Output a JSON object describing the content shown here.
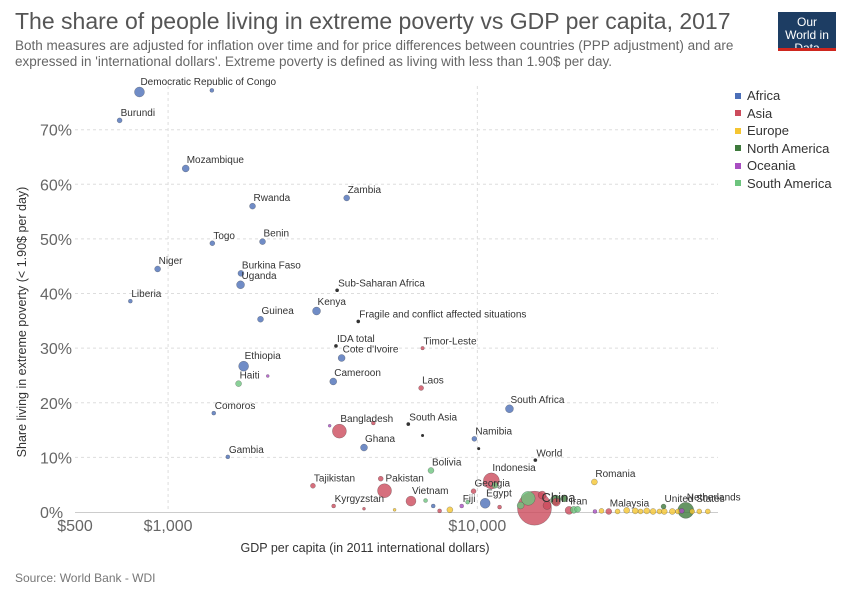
{
  "header": {
    "title": "The share of people living in extreme poverty vs GDP per capita, 2017",
    "subtitle": "Both measures are adjusted for inflation over time and for price differences between countries (PPP adjustment) and are expressed in 'international dollars'. Extreme poverty is defined as living with less than 1.90$ per day.",
    "logo_text": "Our World in Data"
  },
  "footer": {
    "source": "Source: World Bank - WDI"
  },
  "colors": {
    "Africa": "#4c6fb8",
    "Asia": "#cc4b5c",
    "Europe": "#f5c531",
    "North America": "#3e7a3c",
    "Oceania": "#a84ec1",
    "South America": "#6dc47e",
    "Aggregate": "#333333",
    "logo_bg": "#1d3d63",
    "logo_bar": "#ce261e"
  },
  "legend": [
    {
      "name": "Africa"
    },
    {
      "name": "Asia"
    },
    {
      "name": "Europe"
    },
    {
      "name": "North America"
    },
    {
      "name": "Oceania"
    },
    {
      "name": "South America"
    }
  ],
  "chart_data": {
    "type": "scatter",
    "title": "The share of people living in extreme poverty vs GDP per capita, 2017",
    "xlabel": "GDP per capita (in 2011 international dollars)",
    "ylabel": "Share living in extreme poverty (< 1.90$ per day)",
    "x_scale": "log",
    "xlim": [
      500,
      60000
    ],
    "ylim": [
      0,
      78
    ],
    "x_ticks": [
      {
        "value": 500,
        "label": "$500"
      },
      {
        "value": 1000,
        "label": "$1,000"
      },
      {
        "value": 10000,
        "label": "$10,000"
      }
    ],
    "y_ticks": [
      {
        "value": 0,
        "label": "0%"
      },
      {
        "value": 10,
        "label": "10%"
      },
      {
        "value": 20,
        "label": "20%"
      },
      {
        "value": 30,
        "label": "30%"
      },
      {
        "value": 40,
        "label": "40%"
      },
      {
        "value": 50,
        "label": "50%"
      },
      {
        "value": 60,
        "label": "60%"
      },
      {
        "value": 70,
        "label": "70%"
      }
    ],
    "grid": true,
    "legend_position": "right",
    "points": [
      {
        "label": "Democratic Republic of Congo",
        "x": 808,
        "y": 76.9,
        "continent": "Africa",
        "size": 5
      },
      {
        "label": "",
        "x": 1385,
        "y": 77.2,
        "continent": "Africa",
        "size": 2
      },
      {
        "label": "Burundi",
        "x": 697,
        "y": 71.7,
        "continent": "Africa",
        "size": 2.5
      },
      {
        "label": "Mozambique",
        "x": 1140,
        "y": 62.9,
        "continent": "Africa",
        "size": 3.5
      },
      {
        "label": "Zambia",
        "x": 3780,
        "y": 57.5,
        "continent": "Africa",
        "size": 3
      },
      {
        "label": "Rwanda",
        "x": 1875,
        "y": 56.0,
        "continent": "Africa",
        "size": 3
      },
      {
        "label": "Togo",
        "x": 1390,
        "y": 49.2,
        "continent": "Africa",
        "size": 2.5
      },
      {
        "label": "Benin",
        "x": 2020,
        "y": 49.5,
        "continent": "Africa",
        "size": 3
      },
      {
        "label": "Niger",
        "x": 925,
        "y": 44.5,
        "continent": "Africa",
        "size": 3
      },
      {
        "label": "Burkina Faso",
        "x": 1720,
        "y": 43.7,
        "continent": "Africa",
        "size": 3
      },
      {
        "label": "Uganda",
        "x": 1715,
        "y": 41.6,
        "continent": "Africa",
        "size": 4
      },
      {
        "label": "Sub-Saharan Africa",
        "x": 3520,
        "y": 40.6,
        "continent": "Aggregate",
        "size": 1.8
      },
      {
        "label": "Liberia",
        "x": 755,
        "y": 38.6,
        "continent": "Africa",
        "size": 2
      },
      {
        "label": "Kenya",
        "x": 3020,
        "y": 36.8,
        "continent": "Africa",
        "size": 4
      },
      {
        "label": "Guinea",
        "x": 1990,
        "y": 35.3,
        "continent": "Africa",
        "size": 3
      },
      {
        "label": "Fragile and conflict affected situations",
        "x": 4120,
        "y": 34.9,
        "continent": "Aggregate",
        "size": 1.8
      },
      {
        "label": "IDA total",
        "x": 3490,
        "y": 30.4,
        "continent": "Aggregate",
        "size": 1.8
      },
      {
        "label": "Timor-Leste",
        "x": 6650,
        "y": 30.0,
        "continent": "Asia",
        "size": 1.8
      },
      {
        "label": "Cote d'Ivoire",
        "x": 3640,
        "y": 28.2,
        "continent": "Africa",
        "size": 3.5
      },
      {
        "label": "Ethiopia",
        "x": 1755,
        "y": 26.7,
        "continent": "Africa",
        "size": 5
      },
      {
        "label": "",
        "x": 2100,
        "y": 24.9,
        "continent": "Oceania",
        "size": 1.5
      },
      {
        "label": "Haiti",
        "x": 1690,
        "y": 23.5,
        "continent": "South America",
        "size": 3
      },
      {
        "label": "Cameroon",
        "x": 3420,
        "y": 23.9,
        "continent": "Africa",
        "size": 3.5
      },
      {
        "label": "Laos",
        "x": 6580,
        "y": 22.7,
        "continent": "Asia",
        "size": 2.5
      },
      {
        "label": "South Africa",
        "x": 12700,
        "y": 18.9,
        "continent": "Africa",
        "size": 4
      },
      {
        "label": "Comoros",
        "x": 1405,
        "y": 18.1,
        "continent": "Africa",
        "size": 2
      },
      {
        "label": "South Asia",
        "x": 5980,
        "y": 16.1,
        "continent": "Aggregate",
        "size": 1.8
      },
      {
        "label": "",
        "x": 3330,
        "y": 15.8,
        "continent": "Oceania",
        "size": 1.5
      },
      {
        "label": "Bangladesh",
        "x": 3580,
        "y": 14.8,
        "continent": "Asia",
        "size": 7
      },
      {
        "label": "",
        "x": 4610,
        "y": 16.3,
        "continent": "Asia",
        "size": 2
      },
      {
        "label": "",
        "x": 6650,
        "y": 14.0,
        "continent": "Aggregate",
        "size": 1.5
      },
      {
        "label": "Namibia",
        "x": 9780,
        "y": 13.4,
        "continent": "Africa",
        "size": 2.5
      },
      {
        "label": "Ghana",
        "x": 4300,
        "y": 11.8,
        "continent": "Africa",
        "size": 3.5
      },
      {
        "label": "",
        "x": 10100,
        "y": 11.6,
        "continent": "Aggregate",
        "size": 1.5
      },
      {
        "label": "Gambia",
        "x": 1560,
        "y": 10.1,
        "continent": "Africa",
        "size": 2
      },
      {
        "label": "World",
        "x": 15400,
        "y": 9.5,
        "continent": "Aggregate",
        "size": 1.8
      },
      {
        "label": "Bolivia",
        "x": 7080,
        "y": 7.6,
        "continent": "South America",
        "size": 3
      },
      {
        "label": "Indonesia",
        "x": 11100,
        "y": 5.7,
        "continent": "Asia",
        "size": 8
      },
      {
        "label": "Romania",
        "x": 23900,
        "y": 5.5,
        "continent": "Europe",
        "size": 3
      },
      {
        "label": "Tajikistan",
        "x": 2940,
        "y": 4.8,
        "continent": "Asia",
        "size": 2.5
      },
      {
        "label": "Pakistan",
        "x": 5010,
        "y": 3.9,
        "continent": "Asia",
        "size": 7
      },
      {
        "label": "",
        "x": 4870,
        "y": 6.1,
        "continent": "Asia",
        "size": 2.5
      },
      {
        "label": "Georgia",
        "x": 9720,
        "y": 3.8,
        "continent": "Asia",
        "size": 2.5
      },
      {
        "label": "",
        "x": 11400,
        "y": 4.9,
        "continent": "South America",
        "size": 3
      },
      {
        "label": "China",
        "x": 15300,
        "y": 0.7,
        "continent": "Asia",
        "size": 17
      },
      {
        "label": "",
        "x": 14600,
        "y": 2.5,
        "continent": "South America",
        "size": 7
      },
      {
        "label": "",
        "x": 16200,
        "y": 3.1,
        "continent": "Asia",
        "size": 4
      },
      {
        "label": "",
        "x": 16800,
        "y": 1.2,
        "continent": "Asia",
        "size": 4
      },
      {
        "label": "",
        "x": 18000,
        "y": 1.8,
        "continent": "Asia",
        "size": 4
      },
      {
        "label": "",
        "x": 17900,
        "y": 2.2,
        "continent": "North America",
        "size": 5
      },
      {
        "label": "",
        "x": 19100,
        "y": 2.5,
        "continent": "North America",
        "size": 3.5
      },
      {
        "label": "",
        "x": 13800,
        "y": 1.2,
        "continent": "South America",
        "size": 3.5
      },
      {
        "label": "",
        "x": 20500,
        "y": 0.4,
        "continent": "South America",
        "size": 3.5
      },
      {
        "label": "",
        "x": 21100,
        "y": 0.5,
        "continent": "South America",
        "size": 3
      },
      {
        "label": "Vietnam",
        "x": 6100,
        "y": 2.0,
        "continent": "Asia",
        "size": 5
      },
      {
        "label": "",
        "x": 6800,
        "y": 2.1,
        "continent": "South America",
        "size": 2
      },
      {
        "label": "Kyrgyzstan",
        "x": 3430,
        "y": 1.1,
        "continent": "Asia",
        "size": 2
      },
      {
        "label": "",
        "x": 4300,
        "y": 0.6,
        "continent": "Asia",
        "size": 1.5
      },
      {
        "label": "",
        "x": 5400,
        "y": 0.4,
        "continent": "Europe",
        "size": 1.5
      },
      {
        "label": "Fiji",
        "x": 8900,
        "y": 1.1,
        "continent": "Oceania",
        "size": 2
      },
      {
        "label": "Egypt",
        "x": 10600,
        "y": 1.6,
        "continent": "Africa",
        "size": 5
      },
      {
        "label": "",
        "x": 7200,
        "y": 1.1,
        "continent": "Africa",
        "size": 2
      },
      {
        "label": "",
        "x": 7550,
        "y": 0.2,
        "continent": "Asia",
        "size": 2
      },
      {
        "label": "",
        "x": 8150,
        "y": 0.4,
        "continent": "Europe",
        "size": 3
      },
      {
        "label": "",
        "x": 9300,
        "y": 1.8,
        "continent": "South America",
        "size": 2
      },
      {
        "label": "",
        "x": 11800,
        "y": 0.9,
        "continent": "Asia",
        "size": 2
      },
      {
        "label": "Iran",
        "x": 19800,
        "y": 0.3,
        "continent": "Asia",
        "size": 4
      },
      {
        "label": "Malaysia",
        "x": 26600,
        "y": 0.1,
        "continent": "Asia",
        "size": 3
      },
      {
        "label": "",
        "x": 24000,
        "y": 0.1,
        "continent": "Oceania",
        "size": 2
      },
      {
        "label": "",
        "x": 25200,
        "y": 0.2,
        "continent": "Europe",
        "size": 2.5
      },
      {
        "label": "",
        "x": 28400,
        "y": 0.1,
        "continent": "Europe",
        "size": 2.5
      },
      {
        "label": "",
        "x": 30400,
        "y": 0.3,
        "continent": "Europe",
        "size": 3
      },
      {
        "label": "",
        "x": 32400,
        "y": 0.2,
        "continent": "Europe",
        "size": 3
      },
      {
        "label": "",
        "x": 33700,
        "y": 0.1,
        "continent": "Europe",
        "size": 2.5
      },
      {
        "label": "",
        "x": 35300,
        "y": 0.2,
        "continent": "Europe",
        "size": 3
      },
      {
        "label": "",
        "x": 37000,
        "y": 0.1,
        "continent": "Europe",
        "size": 3
      },
      {
        "label": "",
        "x": 38800,
        "y": 0.1,
        "continent": "Europe",
        "size": 2.5
      },
      {
        "label": "",
        "x": 40200,
        "y": 0.1,
        "continent": "Europe",
        "size": 3
      },
      {
        "label": "",
        "x": 42700,
        "y": 0.1,
        "continent": "Europe",
        "size": 3
      },
      {
        "label": "United States",
        "x": 40000,
        "y": 1.0,
        "continent": "North America",
        "size": 2.5
      },
      {
        "label": "Netherlands",
        "x": 47200,
        "y": 0.3,
        "continent": "North America",
        "size": 8
      },
      {
        "label": "",
        "x": 44500,
        "y": 0.1,
        "continent": "Europe",
        "size": 2.5
      },
      {
        "label": "",
        "x": 45800,
        "y": 0.2,
        "continent": "Oceania",
        "size": 2.5
      },
      {
        "label": "",
        "x": 49500,
        "y": 0.1,
        "continent": "Europe",
        "size": 2.5
      },
      {
        "label": "",
        "x": 52200,
        "y": 0.1,
        "continent": "Europe",
        "size": 2.5
      },
      {
        "label": "",
        "x": 55600,
        "y": 0.1,
        "continent": "Europe",
        "size": 2.5
      }
    ]
  }
}
